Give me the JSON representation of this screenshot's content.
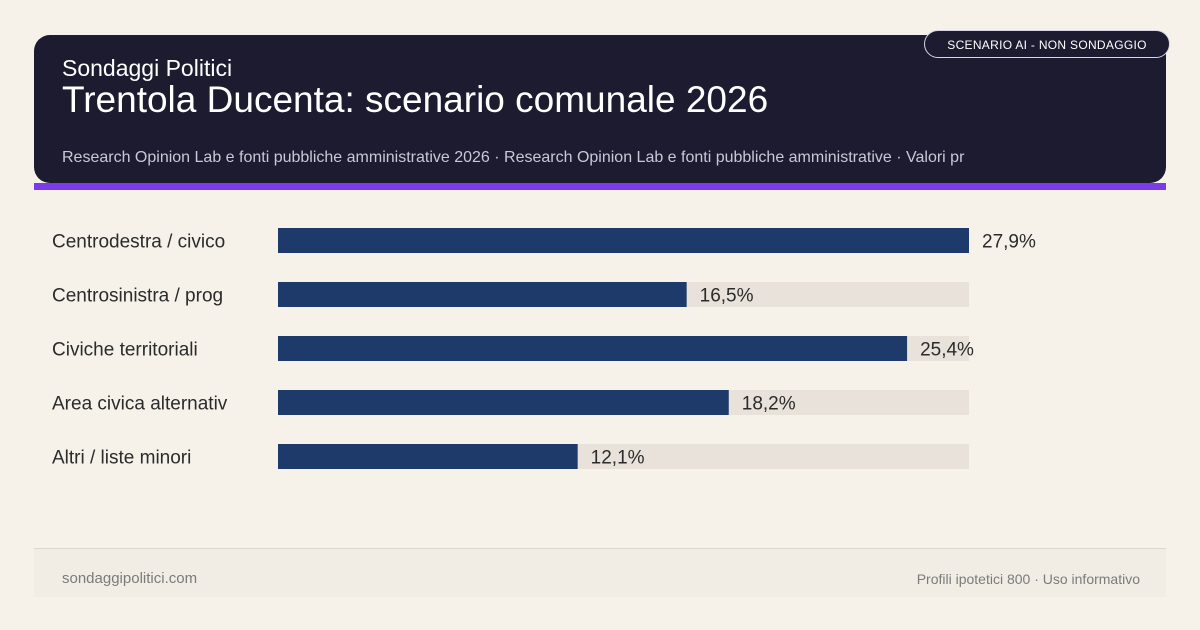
{
  "header": {
    "kicker": "Sondaggi Politici",
    "title": "Trentola Ducenta: scenario comunale 2026",
    "subtitle": "Research Opinion Lab e fonti pubbliche amministrative 2026 · Research Opinion Lab e fonti pubbliche amministrative · Valori pr",
    "badge": "SCENARIO AI - NON SONDAGGIO"
  },
  "chart_data": {
    "type": "bar",
    "orientation": "horizontal",
    "categories": [
      "Centrodestra / civico",
      "Centrosinistra / prog",
      "Civiche territoriali",
      "Area civica alternativ",
      "Altri / liste minori"
    ],
    "values": [
      27.9,
      16.5,
      25.4,
      18.2,
      12.1
    ],
    "value_labels": [
      "27,9%",
      "16,5%",
      "25,4%",
      "18,2%",
      "12,1%"
    ],
    "xlim": [
      0,
      27.9
    ],
    "bar_color": "#1e3a6b",
    "track_color": "#e8e2da"
  },
  "footer": {
    "left": "sondaggipolitici.com",
    "right": "Profili ipotetici 800 · Uso informativo"
  }
}
